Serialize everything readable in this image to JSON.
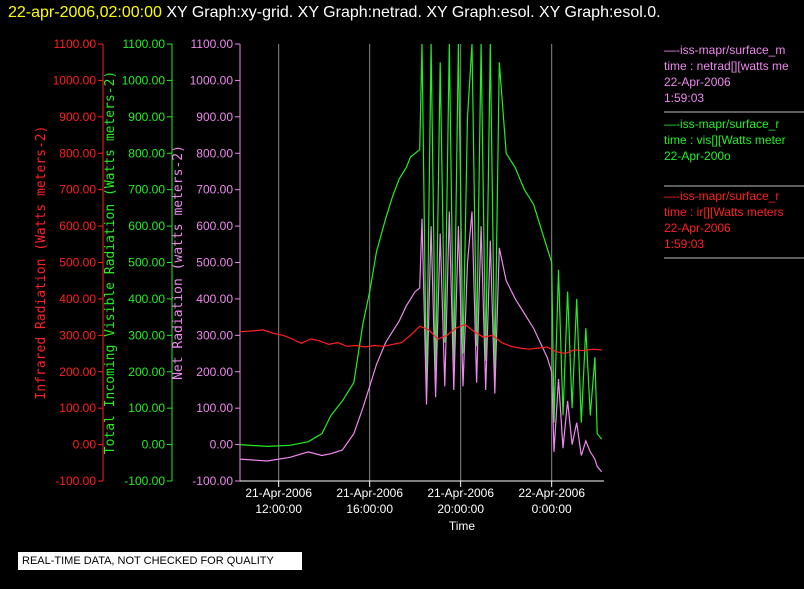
{
  "header": {
    "date": "22-apr-2006,02:00:00",
    "graphs": "XY Graph:xy-grid.  XY Graph:netrad.  XY Graph:esol.  XY Graph:esol.0."
  },
  "colors": {
    "red": "#ff2020",
    "green": "#22ee22",
    "violet": "#ee88ee",
    "grid": "#888888",
    "axis": "#ffffff"
  },
  "legend": [
    {
      "color": "#ee88ee",
      "lines": [
        "—-iss-mapr/surface_m",
        "time : netrad[][watts me",
        "22-Apr-2006",
        "1:59:03"
      ]
    },
    {
      "color": "#22ee22",
      "lines": [
        "—-iss-mapr/surface_r",
        "time : vis[][Watts meter",
        "22-Apr-200o"
      ]
    },
    {
      "color": "#ff2020",
      "lines": [
        "—-iss-mapr/surface_r",
        "time : ir[][Watts meters",
        "22-Apr-2006",
        "1:59:03"
      ]
    }
  ],
  "notice": "REAL-TIME DATA, NOT CHECKED FOR QUALITY",
  "chart_data": {
    "type": "line",
    "xlabel": "Time",
    "x_ticks": [
      {
        "x": 12,
        "lines": [
          "21-Apr-2006",
          "12:00:00"
        ]
      },
      {
        "x": 16,
        "lines": [
          "21-Apr-2006",
          "16:00:00"
        ]
      },
      {
        "x": 20,
        "lines": [
          "21-Apr-2006",
          "20:00:00"
        ]
      },
      {
        "x": 24,
        "lines": [
          "22-Apr-2006",
          "0:00:00"
        ]
      }
    ],
    "xlim": [
      10.3,
      26.3
    ],
    "ylim": [
      -100,
      1100
    ],
    "y_ticks": [
      "-100.00",
      "0.00",
      "100.00",
      "200.00",
      "300.00",
      "400.00",
      "500.00",
      "600.00",
      "700.00",
      "800.00",
      "900.00",
      "1000.00",
      "1100.00"
    ],
    "axes": [
      {
        "label": "Infrared Radiation (Watts meters-2)",
        "color": "#ff2020"
      },
      {
        "label": "Total Incoming Visible Radiation (Watts meters-2)",
        "color": "#22ee22"
      },
      {
        "label": "Net Radiation (watts meters-2)",
        "color": "#ee88ee"
      }
    ],
    "grid": "vertical",
    "series": [
      {
        "name": "time : vis[][Watts meter",
        "color": "#22ee22",
        "x": [
          10.3,
          11.5,
          12.5,
          13.3,
          13.9,
          14.3,
          14.8,
          15.3,
          15.7,
          16.0,
          16.3,
          16.7,
          17.0,
          17.3,
          17.6,
          17.8,
          18.0,
          18.2,
          18.3,
          18.5,
          18.7,
          18.9,
          19.1,
          19.3,
          19.5,
          19.7,
          19.9,
          20.1,
          20.3,
          20.5,
          20.7,
          20.9,
          21.1,
          21.3,
          21.5,
          21.7,
          22.0,
          22.4,
          22.8,
          23.2,
          23.5,
          23.8,
          24.0,
          24.1,
          24.3,
          24.5,
          24.7,
          24.9,
          25.1,
          25.3,
          25.5,
          25.7,
          25.9,
          26.0,
          26.2
        ],
        "y": [
          0,
          -5,
          -2,
          8,
          30,
          80,
          120,
          170,
          330,
          420,
          530,
          620,
          680,
          730,
          760,
          790,
          800,
          810,
          1100,
          150,
          1100,
          200,
          1050,
          280,
          1100,
          220,
          1100,
          250,
          900,
          1100,
          270,
          1100,
          230,
          1100,
          200,
          1050,
          800,
          760,
          700,
          660,
          600,
          540,
          500,
          60,
          480,
          80,
          420,
          100,
          400,
          60,
          320,
          80,
          240,
          30,
          15
        ]
      },
      {
        "name": "time : netrad[][watts me",
        "color": "#ee88ee",
        "x": [
          10.3,
          11.5,
          12.5,
          13.3,
          13.9,
          14.3,
          14.8,
          15.3,
          15.7,
          16.0,
          16.3,
          16.7,
          17.0,
          17.3,
          17.6,
          17.8,
          18.0,
          18.2,
          18.3,
          18.5,
          18.7,
          18.9,
          19.1,
          19.3,
          19.5,
          19.7,
          19.9,
          20.1,
          20.3,
          20.5,
          20.7,
          20.9,
          21.1,
          21.3,
          21.5,
          21.7,
          22.0,
          22.4,
          22.8,
          23.2,
          23.5,
          23.8,
          24.0,
          24.1,
          24.3,
          24.5,
          24.7,
          24.9,
          25.1,
          25.3,
          25.5,
          25.7,
          25.9,
          26.0,
          26.2
        ],
        "y": [
          -40,
          -45,
          -35,
          -20,
          -30,
          -25,
          -15,
          30,
          100,
          160,
          220,
          280,
          310,
          340,
          380,
          400,
          420,
          430,
          620,
          110,
          600,
          130,
          580,
          160,
          640,
          150,
          600,
          160,
          500,
          640,
          170,
          600,
          150,
          560,
          140,
          540,
          450,
          400,
          360,
          320,
          280,
          240,
          200,
          -20,
          180,
          -10,
          120,
          0,
          60,
          -30,
          10,
          -20,
          -40,
          -60,
          -75
        ]
      },
      {
        "name": "time : ir[][Watts meters",
        "color": "#ff2020",
        "x": [
          10.3,
          10.8,
          11.3,
          11.8,
          12.2,
          12.6,
          13.0,
          13.4,
          13.8,
          14.2,
          14.6,
          15.0,
          15.4,
          15.8,
          16.2,
          16.6,
          17.0,
          17.4,
          17.8,
          18.2,
          18.6,
          19.0,
          19.4,
          19.8,
          20.2,
          20.6,
          21.0,
          21.4,
          21.8,
          22.2,
          22.6,
          23.0,
          23.4,
          23.8,
          24.2,
          24.6,
          25.0,
          25.4,
          25.8,
          26.2
        ],
        "y": [
          310,
          312,
          315,
          305,
          300,
          290,
          278,
          290,
          285,
          275,
          280,
          270,
          272,
          268,
          272,
          270,
          275,
          280,
          300,
          325,
          315,
          290,
          300,
          320,
          330,
          310,
          295,
          300,
          280,
          270,
          265,
          262,
          265,
          268,
          255,
          250,
          260,
          258,
          262,
          260
        ]
      }
    ]
  }
}
